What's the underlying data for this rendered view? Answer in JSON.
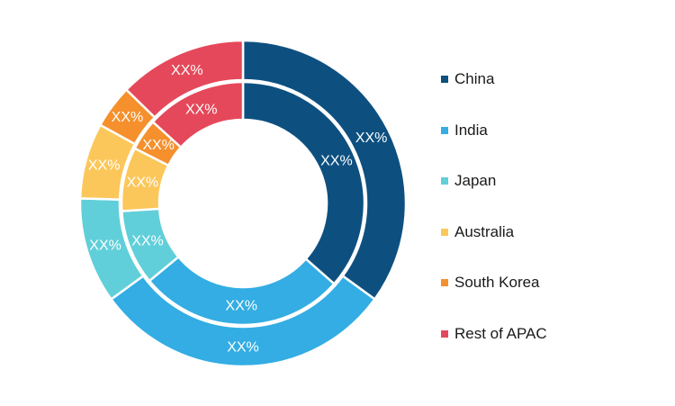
{
  "chart_data": {
    "type": "pie",
    "title": "",
    "categories": [
      "China",
      "India",
      "Japan",
      "Australia",
      "South Korea",
      "Rest of APAC"
    ],
    "colors": [
      "#0d5080",
      "#33ade3",
      "#60cfd9",
      "#fcc75a",
      "#f5902d",
      "#e5485a"
    ],
    "series": [
      {
        "ring": "outer",
        "values": [
          35,
          30,
          10.5,
          7.5,
          4.3,
          12.7
        ],
        "labels": [
          "XX%",
          "XX%",
          "XX%",
          "XX%",
          "XX%",
          "XX%"
        ]
      },
      {
        "ring": "inner",
        "values": [
          36.5,
          27.5,
          10,
          8.5,
          4.2,
          13.3
        ],
        "labels": [
          "XX%",
          "XX%",
          "XX%",
          "XX%",
          "XX%",
          "XX%"
        ]
      }
    ],
    "legend_position": "right"
  }
}
